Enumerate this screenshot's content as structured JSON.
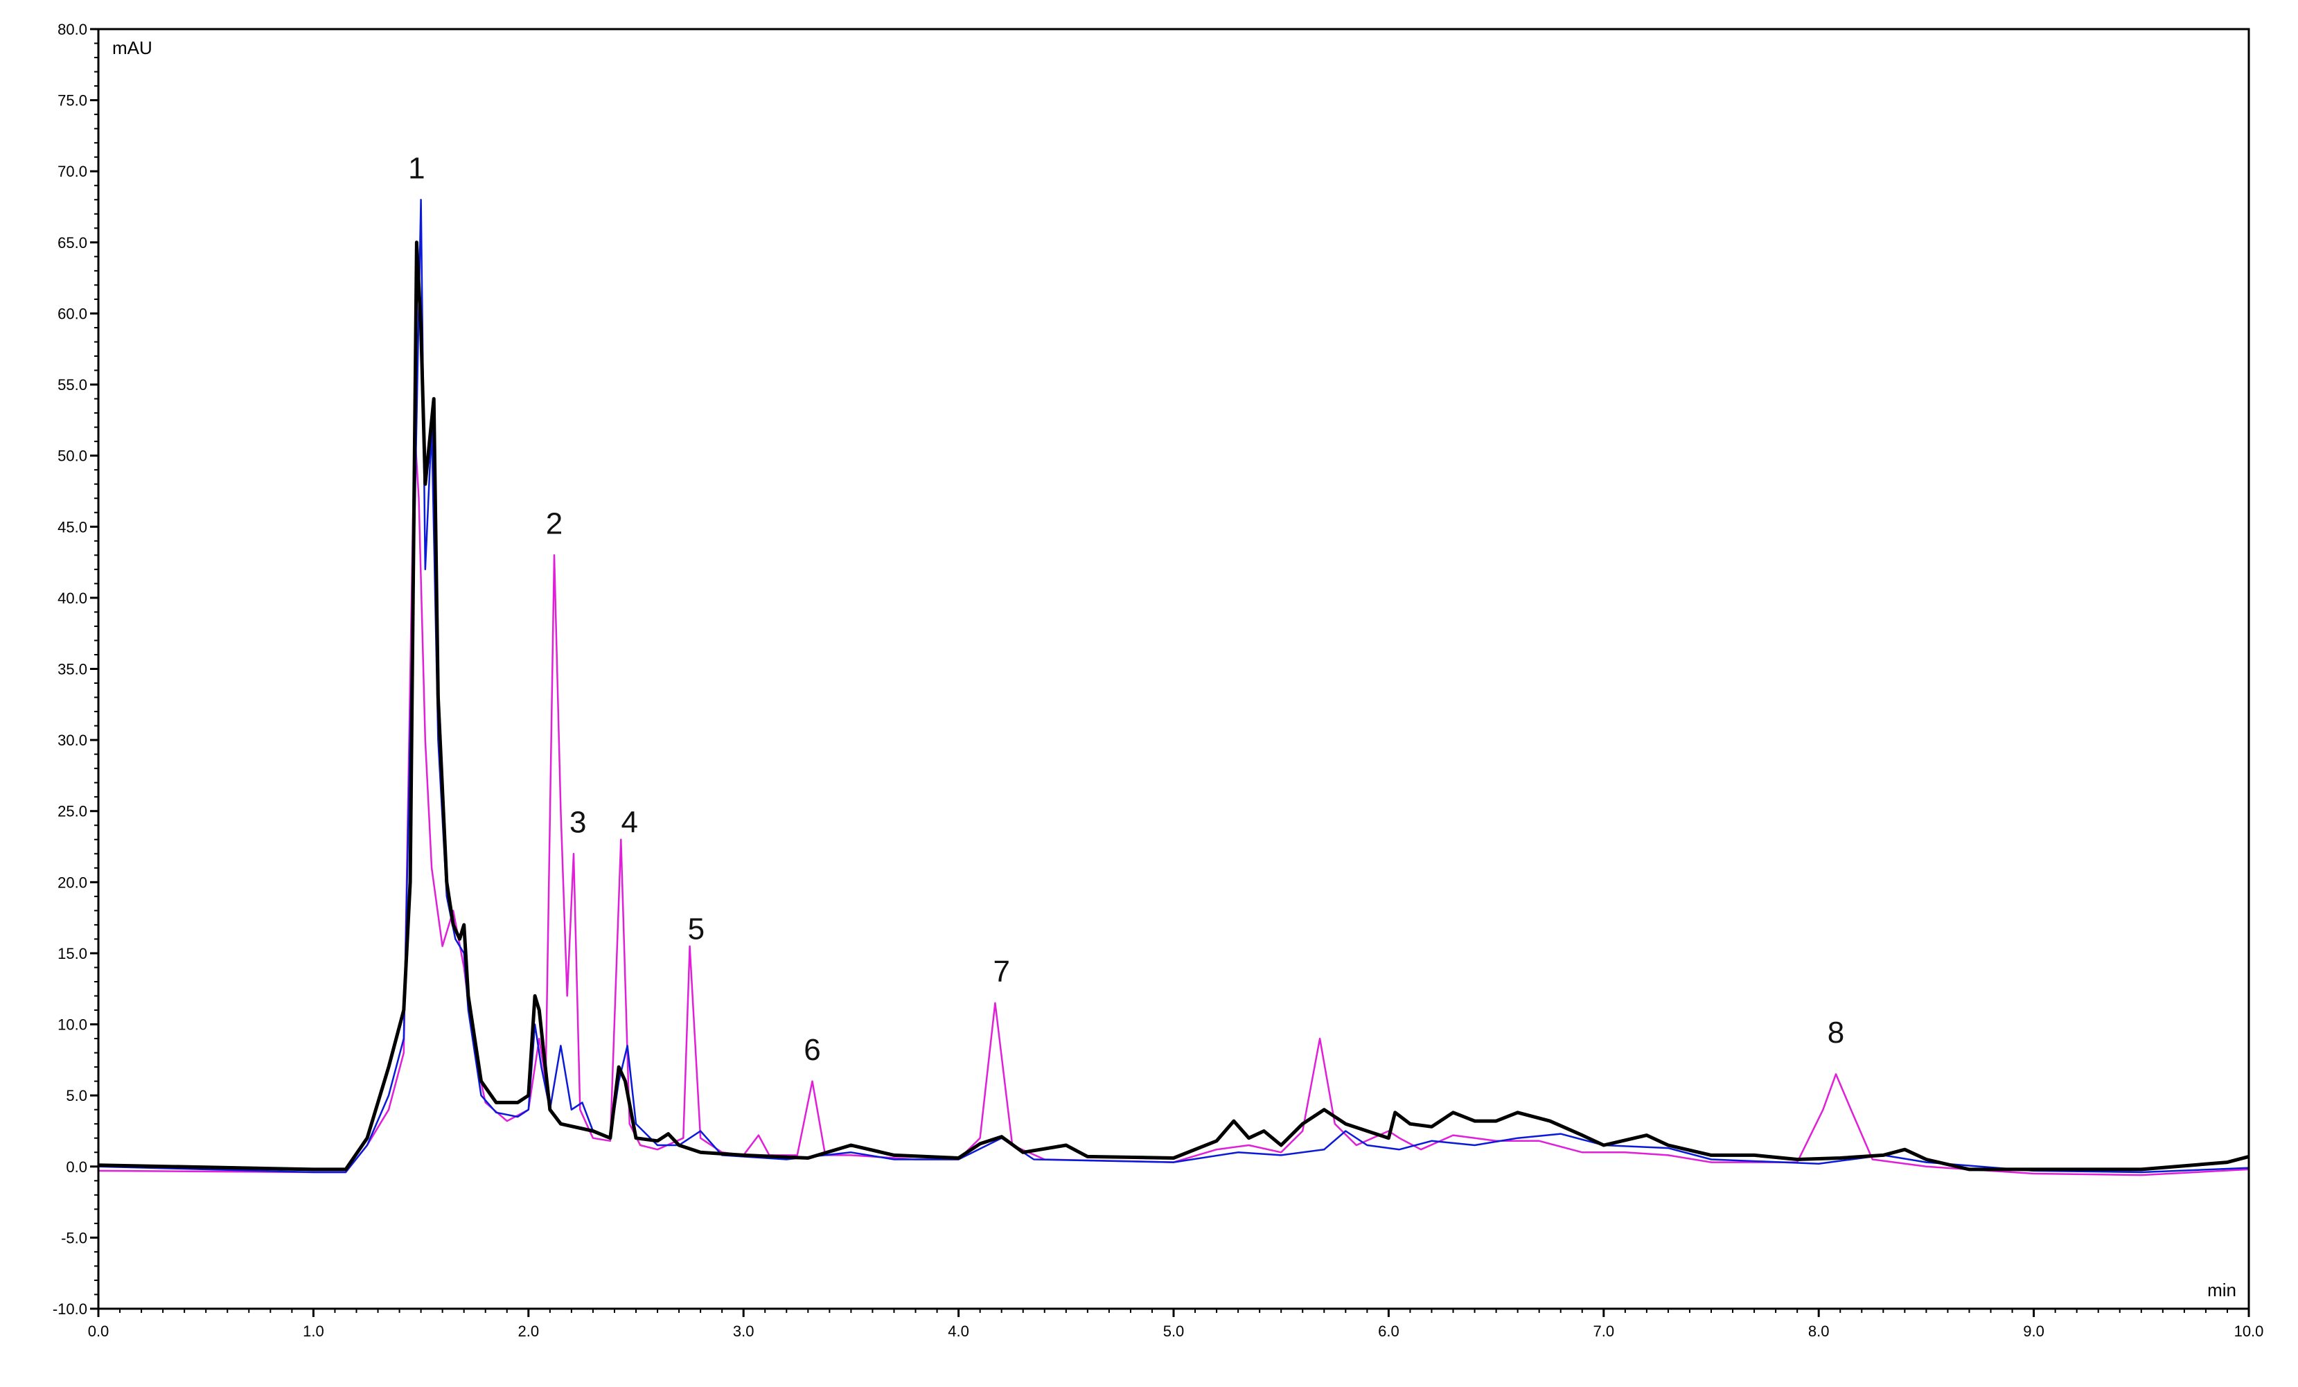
{
  "chart_data": {
    "type": "line",
    "title": "",
    "xlabel": "min",
    "ylabel": "mAU",
    "xlim": [
      0.0,
      10.0
    ],
    "ylim": [
      -10.0,
      80.0
    ],
    "x_ticks": [
      "0.0",
      "1.0",
      "2.0",
      "3.0",
      "4.0",
      "5.0",
      "6.0",
      "7.0",
      "8.0",
      "9.0",
      "10.0"
    ],
    "y_ticks": [
      "-10.0",
      "-5.0",
      "0.0",
      "5.0",
      "10.0",
      "15.0",
      "20.0",
      "25.0",
      "30.0",
      "35.0",
      "40.0",
      "45.0",
      "50.0",
      "55.0",
      "60.0",
      "65.0",
      "70.0",
      "75.0",
      "80.0"
    ],
    "grid": false,
    "legend": "none",
    "series": [
      {
        "color": "#000000",
        "points": [
          [
            0.0,
            0.1
          ],
          [
            1.0,
            -0.2
          ],
          [
            1.15,
            -0.2
          ],
          [
            1.25,
            2
          ],
          [
            1.35,
            7
          ],
          [
            1.42,
            11
          ],
          [
            1.45,
            20
          ],
          [
            1.48,
            65
          ],
          [
            1.5,
            59
          ],
          [
            1.52,
            48
          ],
          [
            1.56,
            54
          ],
          [
            1.58,
            33
          ],
          [
            1.62,
            20
          ],
          [
            1.65,
            17
          ],
          [
            1.68,
            16
          ],
          [
            1.7,
            17
          ],
          [
            1.72,
            12
          ],
          [
            1.78,
            6
          ],
          [
            1.85,
            4.5
          ],
          [
            1.95,
            4.5
          ],
          [
            2.0,
            5
          ],
          [
            2.03,
            12
          ],
          [
            2.05,
            11
          ],
          [
            2.1,
            4
          ],
          [
            2.15,
            3
          ],
          [
            2.3,
            2.5
          ],
          [
            2.38,
            2
          ],
          [
            2.42,
            7
          ],
          [
            2.45,
            6
          ],
          [
            2.5,
            2
          ],
          [
            2.6,
            1.8
          ],
          [
            2.65,
            2.3
          ],
          [
            2.7,
            1.5
          ],
          [
            2.8,
            1
          ],
          [
            3.0,
            0.8
          ],
          [
            3.3,
            0.6
          ],
          [
            3.5,
            1.5
          ],
          [
            3.7,
            0.8
          ],
          [
            4.0,
            0.6
          ],
          [
            4.1,
            1.6
          ],
          [
            4.2,
            2.1
          ],
          [
            4.3,
            1
          ],
          [
            4.5,
            1.5
          ],
          [
            4.6,
            0.7
          ],
          [
            5.0,
            0.6
          ],
          [
            5.2,
            1.8
          ],
          [
            5.28,
            3.2
          ],
          [
            5.35,
            2
          ],
          [
            5.42,
            2.5
          ],
          [
            5.5,
            1.5
          ],
          [
            5.6,
            3
          ],
          [
            5.7,
            4
          ],
          [
            5.8,
            3
          ],
          [
            6.0,
            2
          ],
          [
            6.03,
            3.8
          ],
          [
            6.1,
            3
          ],
          [
            6.2,
            2.8
          ],
          [
            6.3,
            3.8
          ],
          [
            6.4,
            3.2
          ],
          [
            6.5,
            3.2
          ],
          [
            6.6,
            3.8
          ],
          [
            6.75,
            3.2
          ],
          [
            6.9,
            2.2
          ],
          [
            7.0,
            1.5
          ],
          [
            7.2,
            2.2
          ],
          [
            7.3,
            1.5
          ],
          [
            7.5,
            0.8
          ],
          [
            7.7,
            0.8
          ],
          [
            7.9,
            0.5
          ],
          [
            8.1,
            0.6
          ],
          [
            8.3,
            0.8
          ],
          [
            8.4,
            1.2
          ],
          [
            8.5,
            0.5
          ],
          [
            8.7,
            -0.2
          ],
          [
            9.0,
            -0.2
          ],
          [
            9.5,
            -0.2
          ],
          [
            9.9,
            0.3
          ],
          [
            10.0,
            0.7
          ]
        ]
      },
      {
        "color": "#0a1ad8",
        "points": [
          [
            0.0,
            0
          ],
          [
            1.0,
            -0.4
          ],
          [
            1.15,
            -0.4
          ],
          [
            1.25,
            1.5
          ],
          [
            1.35,
            5
          ],
          [
            1.42,
            9
          ],
          [
            1.47,
            45
          ],
          [
            1.5,
            68
          ],
          [
            1.52,
            42
          ],
          [
            1.55,
            52
          ],
          [
            1.58,
            30
          ],
          [
            1.62,
            19
          ],
          [
            1.66,
            16
          ],
          [
            1.7,
            15
          ],
          [
            1.72,
            11
          ],
          [
            1.78,
            5
          ],
          [
            1.85,
            3.8
          ],
          [
            1.95,
            3.5
          ],
          [
            2.0,
            4
          ],
          [
            2.03,
            10
          ],
          [
            2.06,
            7
          ],
          [
            2.1,
            4
          ],
          [
            2.15,
            8.5
          ],
          [
            2.2,
            4
          ],
          [
            2.25,
            4.5
          ],
          [
            2.3,
            2.5
          ],
          [
            2.38,
            2
          ],
          [
            2.42,
            6
          ],
          [
            2.46,
            8.5
          ],
          [
            2.5,
            3
          ],
          [
            2.6,
            1.5
          ],
          [
            2.7,
            1.5
          ],
          [
            2.8,
            2.5
          ],
          [
            2.9,
            0.8
          ],
          [
            3.2,
            0.5
          ],
          [
            3.5,
            1
          ],
          [
            3.7,
            0.5
          ],
          [
            4.0,
            0.5
          ],
          [
            4.2,
            2
          ],
          [
            4.35,
            0.5
          ],
          [
            5.0,
            0.3
          ],
          [
            5.3,
            1
          ],
          [
            5.5,
            0.8
          ],
          [
            5.7,
            1.2
          ],
          [
            5.8,
            2.5
          ],
          [
            5.9,
            1.5
          ],
          [
            6.05,
            1.2
          ],
          [
            6.2,
            1.8
          ],
          [
            6.4,
            1.5
          ],
          [
            6.6,
            2
          ],
          [
            6.8,
            2.3
          ],
          [
            7.0,
            1.5
          ],
          [
            7.3,
            1.3
          ],
          [
            7.5,
            0.5
          ],
          [
            8.0,
            0.2
          ],
          [
            8.3,
            0.8
          ],
          [
            8.5,
            0.3
          ],
          [
            9.0,
            -0.3
          ],
          [
            9.5,
            -0.4
          ],
          [
            10.0,
            -0.1
          ]
        ]
      },
      {
        "color": "#e020d8",
        "points": [
          [
            0.0,
            -0.3
          ],
          [
            1.0,
            -0.4
          ],
          [
            1.15,
            -0.4
          ],
          [
            1.25,
            1.5
          ],
          [
            1.35,
            4
          ],
          [
            1.42,
            8
          ],
          [
            1.47,
            52
          ],
          [
            1.49,
            47
          ],
          [
            1.52,
            30
          ],
          [
            1.55,
            21
          ],
          [
            1.6,
            15.5
          ],
          [
            1.65,
            18
          ],
          [
            1.7,
            14
          ],
          [
            1.75,
            8
          ],
          [
            1.8,
            4.5
          ],
          [
            1.9,
            3.2
          ],
          [
            2.0,
            4
          ],
          [
            2.05,
            9
          ],
          [
            2.08,
            6
          ],
          [
            2.12,
            43
          ],
          [
            2.15,
            25
          ],
          [
            2.18,
            12
          ],
          [
            2.21,
            22
          ],
          [
            2.24,
            4
          ],
          [
            2.3,
            2
          ],
          [
            2.38,
            1.8
          ],
          [
            2.43,
            23
          ],
          [
            2.47,
            3
          ],
          [
            2.52,
            1.5
          ],
          [
            2.6,
            1.2
          ],
          [
            2.72,
            2
          ],
          [
            2.75,
            15.5
          ],
          [
            2.8,
            2
          ],
          [
            2.9,
            1
          ],
          [
            3.0,
            0.8
          ],
          [
            3.07,
            2.2
          ],
          [
            3.12,
            0.8
          ],
          [
            3.25,
            0.8
          ],
          [
            3.32,
            6
          ],
          [
            3.38,
            0.8
          ],
          [
            3.5,
            0.8
          ],
          [
            3.8,
            0.5
          ],
          [
            4.0,
            0.5
          ],
          [
            4.1,
            2
          ],
          [
            4.17,
            11.5
          ],
          [
            4.25,
            1.5
          ],
          [
            4.4,
            0.5
          ],
          [
            5.0,
            0.3
          ],
          [
            5.2,
            1.2
          ],
          [
            5.35,
            1.5
          ],
          [
            5.5,
            1
          ],
          [
            5.6,
            2.5
          ],
          [
            5.68,
            9
          ],
          [
            5.75,
            3
          ],
          [
            5.85,
            1.5
          ],
          [
            6.0,
            2.5
          ],
          [
            6.05,
            2
          ],
          [
            6.15,
            1.2
          ],
          [
            6.3,
            2.2
          ],
          [
            6.5,
            1.8
          ],
          [
            6.7,
            1.8
          ],
          [
            6.9,
            1
          ],
          [
            7.1,
            1
          ],
          [
            7.3,
            0.8
          ],
          [
            7.5,
            0.3
          ],
          [
            7.9,
            0.3
          ],
          [
            8.02,
            4
          ],
          [
            8.08,
            6.5
          ],
          [
            8.15,
            4
          ],
          [
            8.25,
            0.5
          ],
          [
            8.5,
            0
          ],
          [
            9.0,
            -0.5
          ],
          [
            9.5,
            -0.6
          ],
          [
            10.0,
            -0.2
          ]
        ]
      }
    ],
    "annotations": [
      {
        "label": "1",
        "x": 1.48,
        "y": 69.5
      },
      {
        "label": "2",
        "x": 2.12,
        "y": 44.5
      },
      {
        "label": "3",
        "x": 2.23,
        "y": 23.5
      },
      {
        "label": "4",
        "x": 2.47,
        "y": 23.5
      },
      {
        "label": "5",
        "x": 2.78,
        "y": 16.0
      },
      {
        "label": "6",
        "x": 3.32,
        "y": 7.5
      },
      {
        "label": "7",
        "x": 4.2,
        "y": 13.0
      },
      {
        "label": "8",
        "x": 8.08,
        "y": 8.7
      }
    ]
  }
}
